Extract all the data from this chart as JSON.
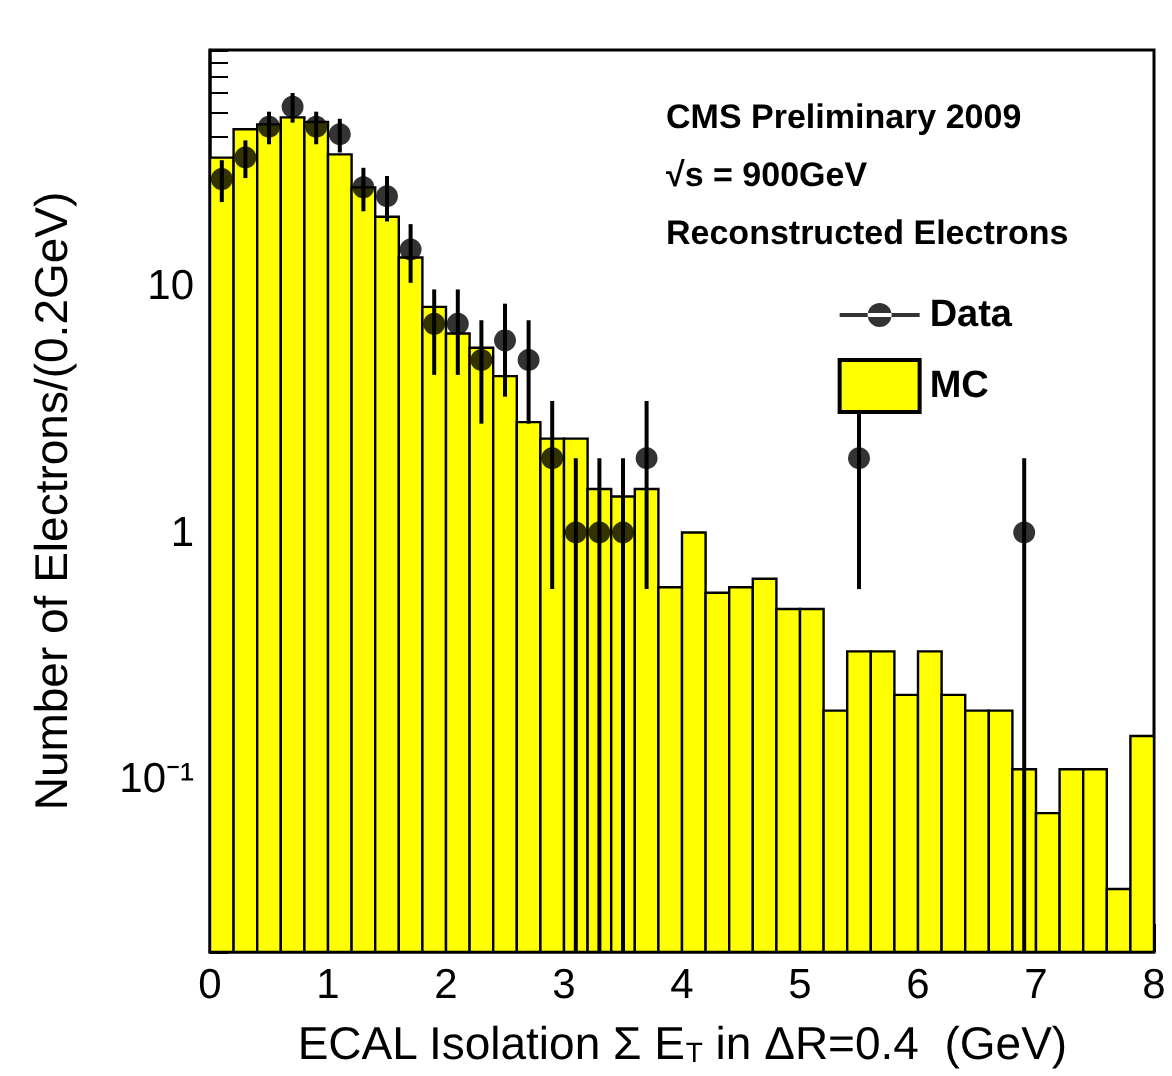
{
  "chart_data": {
    "type": "histogram",
    "xlabel": "ECAL Isolation Σ E$_{T}$ in ΔR=0.4  (GeV)",
    "ylabel": "Number of Electrons/(0.2GeV)",
    "annotations": [
      "CMS Preliminary 2009",
      "√s = 900GeV",
      "Reconstructed Electrons"
    ],
    "bins": [
      0,
      0.2,
      0.4,
      0.6,
      0.8,
      1,
      1.2,
      1.4,
      1.6,
      1.8,
      2,
      2.2,
      2.4,
      2.6,
      2.8,
      3,
      3.2,
      3.4,
      3.6,
      3.8,
      4,
      4.2,
      4.4,
      4.6,
      4.8,
      5,
      5.2,
      5.4,
      5.6,
      5.8,
      6,
      6.2,
      6.4,
      6.6,
      6.8,
      7,
      7.2,
      7.4,
      7.6,
      7.8,
      8
    ],
    "series": [
      {
        "name": "MC",
        "color": "#ffff00",
        "values": [
          33,
          43,
          45,
          48,
          46,
          34,
          25,
          19,
          13,
          8.2,
          6.4,
          5.6,
          4.3,
          2.8,
          2.4,
          2.4,
          1.5,
          1.4,
          1.5,
          0.6,
          1.0,
          0.57,
          0.6,
          0.65,
          0.49,
          0.49,
          0.19,
          0.33,
          0.33,
          0.22,
          0.33,
          0.22,
          0.19,
          0.19,
          0.11,
          0.073,
          0.11,
          0.11,
          0.036,
          0.15
        ]
      },
      {
        "name": "Data",
        "type": "scatter",
        "color": "#000000",
        "x": [
          0.1,
          0.3,
          0.5,
          0.7,
          0.9,
          1.1,
          1.3,
          1.5,
          1.7,
          1.9,
          2.1,
          2.3,
          2.5,
          2.7,
          2.9,
          3.1,
          3.3,
          3.5,
          3.7,
          5.5,
          6.9
        ],
        "values": [
          27,
          33,
          44,
          53,
          44,
          41,
          25,
          23,
          14,
          7,
          7,
          5,
          6,
          5,
          2,
          1,
          1,
          1,
          2,
          2,
          1
        ],
        "errors": [
          5.2,
          5.74,
          6.63,
          7.28,
          6.63,
          6.4,
          5,
          4.8,
          3.74,
          2.65,
          2.65,
          2.24,
          2.45,
          2.24,
          1.41,
          [
            0.98,
            1
          ],
          [
            0.98,
            1
          ],
          [
            0.98,
            1
          ],
          1.41,
          1.41,
          [
            0.98,
            1
          ]
        ]
      }
    ],
    "marker": "circle",
    "log": "y",
    "xlim": [
      0,
      8
    ],
    "xticks": [
      0,
      1,
      2,
      3,
      4,
      5,
      6,
      7,
      8
    ],
    "ylim": [
      0.02,
      90
    ],
    "yticks": [
      {
        "value": 0.02,
        "label": null
      },
      {
        "value": 0.03,
        "label": null
      },
      {
        "value": 0.04,
        "label": null
      },
      {
        "value": 0.05,
        "label": null
      },
      {
        "value": 0.06,
        "label": null
      },
      {
        "value": 0.07,
        "label": null
      },
      {
        "value": 0.08,
        "label": null
      },
      {
        "value": 0.09,
        "label": null
      },
      {
        "value": 0.1,
        "label": "10⁻¹"
      },
      {
        "value": 0.2,
        "label": null
      },
      {
        "value": 0.3,
        "label": null
      },
      {
        "value": 0.4,
        "label": null
      },
      {
        "value": 0.5,
        "label": null
      },
      {
        "value": 0.6,
        "label": null
      },
      {
        "value": 0.7,
        "label": null
      },
      {
        "value": 0.8,
        "label": null
      },
      {
        "value": 0.9,
        "label": null
      },
      1,
      {
        "value": 2,
        "label": null
      },
      {
        "value": 3,
        "label": null
      },
      {
        "value": 4,
        "label": null
      },
      {
        "value": 5,
        "label": null
      },
      {
        "value": 6,
        "label": null
      },
      {
        "value": 7,
        "label": null
      },
      {
        "value": 8,
        "label": null
      },
      {
        "value": 9,
        "label": null
      },
      10,
      {
        "value": 20,
        "label": null
      },
      {
        "value": 30,
        "label": null
      },
      {
        "value": 40,
        "label": null
      },
      {
        "value": 50,
        "label": null
      },
      {
        "value": 60,
        "label": null
      },
      {
        "value": 70,
        "label": null
      },
      {
        "value": 80,
        "label": null
      },
      {
        "value": 90,
        "label": null
      }
    ],
    "legend": "top right"
  }
}
